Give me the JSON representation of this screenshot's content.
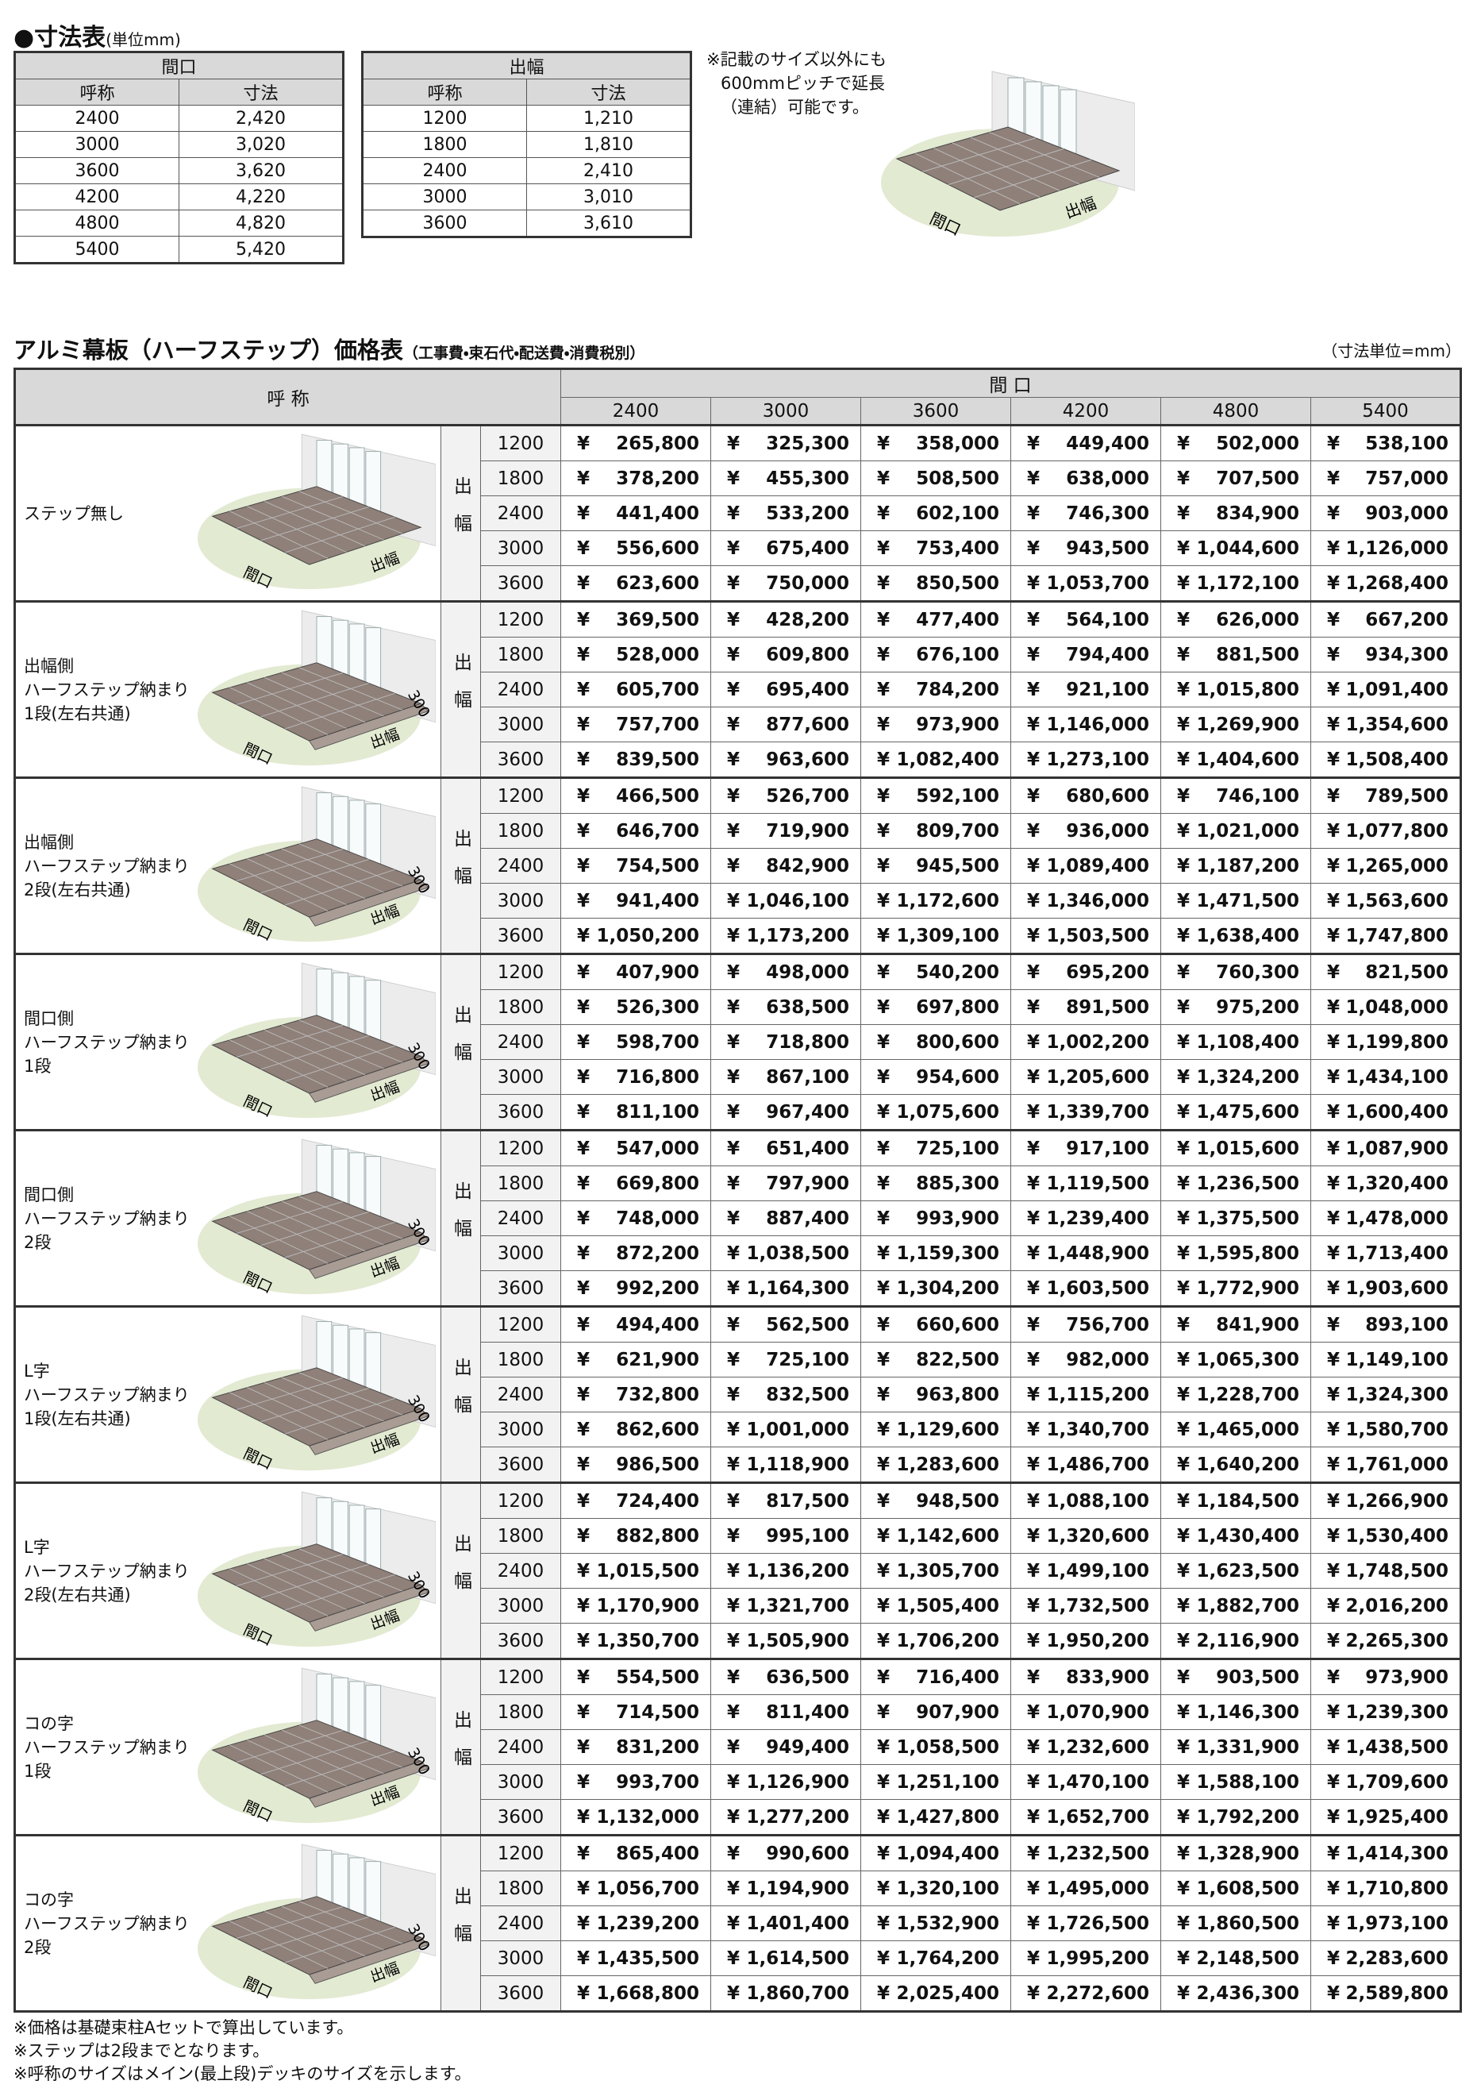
{
  "dimensions": {
    "title": "●寸法表",
    "unit": "(単位mm)",
    "frontage": {
      "header": "間口",
      "columns": [
        "呼称",
        "寸法"
      ],
      "rows": [
        [
          "2400",
          "2,420"
        ],
        [
          "3000",
          "3,020"
        ],
        [
          "3600",
          "3,620"
        ],
        [
          "4200",
          "4,220"
        ],
        [
          "4800",
          "4,820"
        ],
        [
          "5400",
          "5,420"
        ]
      ]
    },
    "depth": {
      "header": "出幅",
      "columns": [
        "呼称",
        "寸法"
      ],
      "rows": [
        [
          "1200",
          "1,210"
        ],
        [
          "1800",
          "1,810"
        ],
        [
          "2400",
          "2,410"
        ],
        [
          "3000",
          "3,010"
        ],
        [
          "3600",
          "3,610"
        ]
      ]
    },
    "note": [
      "※記載のサイズ以外にも",
      "600mmピッチで延長",
      "（連結）可能です。"
    ],
    "diagram": {
      "width": "間口",
      "depth": "出幅"
    }
  },
  "price_table": {
    "title": "アルミ幕板（ハーフステップ）価格表",
    "subtitle": "（工事費・束石代・配送費・消費税別）",
    "unit": "（寸法単位=mm）",
    "name_header": "呼 称",
    "frontage_header": "間 口",
    "frontages": [
      "2400",
      "3000",
      "3600",
      "4200",
      "4800",
      "5400"
    ],
    "depth_label": "出幅",
    "depths": [
      "1200",
      "1800",
      "2400",
      "3000",
      "3600"
    ],
    "currency": "¥",
    "diagram": {
      "width": "間口",
      "depth": "出幅"
    },
    "groups": [
      {
        "name": [
          "ステップ無し"
        ],
        "prices": [
          [
            "265,800",
            "325,300",
            "358,000",
            "449,400",
            "502,000",
            "538,100"
          ],
          [
            "378,200",
            "455,300",
            "508,500",
            "638,000",
            "707,500",
            "757,000"
          ],
          [
            "441,400",
            "533,200",
            "602,100",
            "746,300",
            "834,900",
            "903,000"
          ],
          [
            "556,600",
            "675,400",
            "753,400",
            "943,500",
            "1,044,600",
            "1,126,000"
          ],
          [
            "623,600",
            "750,000",
            "850,500",
            "1,053,700",
            "1,172,100",
            "1,268,400"
          ]
        ]
      },
      {
        "name": [
          "出幅側",
          "ハーフステップ納まり",
          "1段(左右共通)"
        ],
        "step": "300",
        "prices": [
          [
            "369,500",
            "428,200",
            "477,400",
            "564,100",
            "626,000",
            "667,200"
          ],
          [
            "528,000",
            "609,800",
            "676,100",
            "794,400",
            "881,500",
            "934,300"
          ],
          [
            "605,700",
            "695,400",
            "784,200",
            "921,100",
            "1,015,800",
            "1,091,400"
          ],
          [
            "757,700",
            "877,600",
            "973,900",
            "1,146,000",
            "1,269,900",
            "1,354,600"
          ],
          [
            "839,500",
            "963,600",
            "1,082,400",
            "1,273,100",
            "1,404,600",
            "1,508,400"
          ]
        ]
      },
      {
        "name": [
          "出幅側",
          "ハーフステップ納まり",
          "2段(左右共通)"
        ],
        "step": "300",
        "prices": [
          [
            "466,500",
            "526,700",
            "592,100",
            "680,600",
            "746,100",
            "789,500"
          ],
          [
            "646,700",
            "719,900",
            "809,700",
            "936,000",
            "1,021,000",
            "1,077,800"
          ],
          [
            "754,500",
            "842,900",
            "945,500",
            "1,089,400",
            "1,187,200",
            "1,265,000"
          ],
          [
            "941,400",
            "1,046,100",
            "1,172,600",
            "1,346,000",
            "1,471,500",
            "1,563,600"
          ],
          [
            "1,050,200",
            "1,173,200",
            "1,309,100",
            "1,503,500",
            "1,638,400",
            "1,747,800"
          ]
        ]
      },
      {
        "name": [
          "間口側",
          "ハーフステップ納まり",
          "1段"
        ],
        "step": "300",
        "prices": [
          [
            "407,900",
            "498,000",
            "540,200",
            "695,200",
            "760,300",
            "821,500"
          ],
          [
            "526,300",
            "638,500",
            "697,800",
            "891,500",
            "975,200",
            "1,048,000"
          ],
          [
            "598,700",
            "718,800",
            "800,600",
            "1,002,200",
            "1,108,400",
            "1,199,800"
          ],
          [
            "716,800",
            "867,100",
            "954,600",
            "1,205,600",
            "1,324,200",
            "1,434,100"
          ],
          [
            "811,100",
            "967,400",
            "1,075,600",
            "1,339,700",
            "1,475,600",
            "1,600,400"
          ]
        ]
      },
      {
        "name": [
          "間口側",
          "ハーフステップ納まり",
          "2段"
        ],
        "step": "300",
        "prices": [
          [
            "547,000",
            "651,400",
            "725,100",
            "917,100",
            "1,015,600",
            "1,087,900"
          ],
          [
            "669,800",
            "797,900",
            "885,300",
            "1,119,500",
            "1,236,500",
            "1,320,400"
          ],
          [
            "748,000",
            "887,400",
            "993,900",
            "1,239,400",
            "1,375,500",
            "1,478,000"
          ],
          [
            "872,200",
            "1,038,500",
            "1,159,300",
            "1,448,900",
            "1,595,800",
            "1,713,400"
          ],
          [
            "992,200",
            "1,164,300",
            "1,304,200",
            "1,603,500",
            "1,772,900",
            "1,903,600"
          ]
        ]
      },
      {
        "name": [
          "L字",
          "ハーフステップ納まり",
          "1段(左右共通)"
        ],
        "step": "300",
        "prices": [
          [
            "494,400",
            "562,500",
            "660,600",
            "756,700",
            "841,900",
            "893,100"
          ],
          [
            "621,900",
            "725,100",
            "822,500",
            "982,000",
            "1,065,300",
            "1,149,100"
          ],
          [
            "732,800",
            "832,500",
            "963,800",
            "1,115,200",
            "1,228,700",
            "1,324,300"
          ],
          [
            "862,600",
            "1,001,000",
            "1,129,600",
            "1,340,700",
            "1,465,000",
            "1,580,700"
          ],
          [
            "986,500",
            "1,118,900",
            "1,283,600",
            "1,486,700",
            "1,640,200",
            "1,761,000"
          ]
        ]
      },
      {
        "name": [
          "L字",
          "ハーフステップ納まり",
          "2段(左右共通)"
        ],
        "step": "300",
        "prices": [
          [
            "724,400",
            "817,500",
            "948,500",
            "1,088,100",
            "1,184,500",
            "1,266,900"
          ],
          [
            "882,800",
            "995,100",
            "1,142,600",
            "1,320,600",
            "1,430,400",
            "1,530,400"
          ],
          [
            "1,015,500",
            "1,136,200",
            "1,305,700",
            "1,499,100",
            "1,623,500",
            "1,748,500"
          ],
          [
            "1,170,900",
            "1,321,700",
            "1,505,400",
            "1,732,500",
            "1,882,700",
            "2,016,200"
          ],
          [
            "1,350,700",
            "1,505,900",
            "1,706,200",
            "1,950,200",
            "2,116,900",
            "2,265,300"
          ]
        ]
      },
      {
        "name": [
          "コの字",
          "ハーフステップ納まり",
          "1段"
        ],
        "step": "300",
        "prices": [
          [
            "554,500",
            "636,500",
            "716,400",
            "833,900",
            "903,500",
            "973,900"
          ],
          [
            "714,500",
            "811,400",
            "907,900",
            "1,070,900",
            "1,146,300",
            "1,239,300"
          ],
          [
            "831,200",
            "949,400",
            "1,058,500",
            "1,232,600",
            "1,331,900",
            "1,438,500"
          ],
          [
            "993,700",
            "1,126,900",
            "1,251,100",
            "1,470,100",
            "1,588,100",
            "1,709,600"
          ],
          [
            "1,132,000",
            "1,277,200",
            "1,427,800",
            "1,652,700",
            "1,792,200",
            "1,925,400"
          ]
        ]
      },
      {
        "name": [
          "コの字",
          "ハーフステップ納まり",
          "2段"
        ],
        "step": "300",
        "prices": [
          [
            "865,400",
            "990,600",
            "1,094,400",
            "1,232,500",
            "1,328,900",
            "1,414,300"
          ],
          [
            "1,056,700",
            "1,194,900",
            "1,320,100",
            "1,495,000",
            "1,608,500",
            "1,710,800"
          ],
          [
            "1,239,200",
            "1,401,400",
            "1,532,900",
            "1,726,500",
            "1,860,500",
            "1,973,100"
          ],
          [
            "1,435,500",
            "1,614,500",
            "1,764,200",
            "1,995,200",
            "2,148,500",
            "2,283,600"
          ],
          [
            "1,668,800",
            "1,860,700",
            "2,025,400",
            "2,272,600",
            "2,436,300",
            "2,589,800"
          ]
        ]
      }
    ]
  },
  "footnotes": [
    "※価格は基礎束柱Aセットで算出しています。",
    "※ステップは2段までとなります。",
    "※呼称のサイズはメイン(最上段)デッキのサイズを示します。"
  ]
}
